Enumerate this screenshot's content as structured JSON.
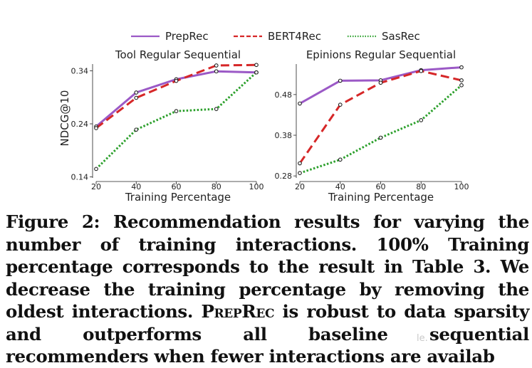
{
  "legend": {
    "items": [
      {
        "name": "PrepRec",
        "color": "#9b59c6",
        "style": "solid"
      },
      {
        "name": "BERT4Rec",
        "color": "#d62728",
        "style": "dashed"
      },
      {
        "name": "SasRec",
        "color": "#2ca02c",
        "style": "dotted"
      }
    ]
  },
  "chart_data": [
    {
      "type": "line",
      "title": "Tool Regular Sequential",
      "xlabel": "Training Percentage",
      "ylabel": "NDCG@10",
      "x": [
        20,
        40,
        60,
        80,
        100
      ],
      "xticks": [
        "20",
        "40",
        "60",
        "80",
        "100"
      ],
      "yticks": [
        "0.14",
        "0.24",
        "0.34"
      ],
      "ytick_values": [
        0.14,
        0.24,
        0.34
      ],
      "ylim": [
        0.138,
        0.35
      ],
      "xlim": [
        20,
        100
      ],
      "series": [
        {
          "name": "PrepRec",
          "values": [
            0.235,
            0.299,
            0.324,
            0.339,
            0.337
          ]
        },
        {
          "name": "BERT4Rec",
          "values": [
            0.232,
            0.289,
            0.321,
            0.35,
            0.351
          ]
        },
        {
          "name": "SasRec",
          "values": [
            0.155,
            0.229,
            0.264,
            0.268,
            0.337
          ]
        }
      ]
    },
    {
      "type": "line",
      "title": "Epinions Regular Sequential",
      "xlabel": "Training Percentage",
      "ylabel": "",
      "x": [
        20,
        40,
        60,
        80,
        100
      ],
      "xticks": [
        "20",
        "40",
        "60",
        "80",
        "100"
      ],
      "yticks": [
        "0.28",
        "0.38",
        "0.48"
      ],
      "ytick_values": [
        0.28,
        0.38,
        0.48
      ],
      "ylim": [
        0.275,
        0.555
      ],
      "xlim": [
        20,
        100
      ],
      "series": [
        {
          "name": "PrepRec",
          "values": [
            0.458,
            0.514,
            0.515,
            0.54,
            0.547
          ]
        },
        {
          "name": "BERT4Rec",
          "values": [
            0.311,
            0.455,
            0.509,
            0.538,
            0.515
          ]
        },
        {
          "name": "SasRec",
          "values": [
            0.287,
            0.32,
            0.374,
            0.417,
            0.503
          ]
        }
      ]
    }
  ],
  "caption": {
    "prefix": "Figure 2: Recommendation results for varying the number of training interactions. 100% Training percentage corresponds to the result in Table 3. We decrease the training percentage by removing the oldest interactions.",
    "model": "PrepRec",
    "suffix": "is robust to data sparsity and outperforms all baseline sequential recommenders when fewer interactions are availab",
    "watermark": "le."
  }
}
